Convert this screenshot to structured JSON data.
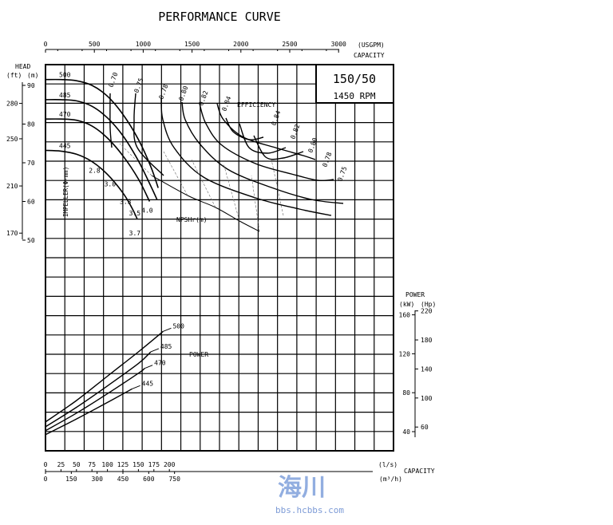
{
  "chart_data": {
    "type": "line",
    "title": "PERFORMANCE CURVE",
    "model": "150/50",
    "speed": "1450 RPM",
    "top_axis": {
      "unit_label": "(USGPM)",
      "label": "CAPACITY",
      "ticks": [
        "0",
        "500",
        "1000",
        "1500",
        "2000",
        "2500",
        "3000"
      ],
      "range": [
        0,
        3000
      ]
    },
    "bottom_axis_ls": {
      "unit_label": "(l/s)",
      "ticks": [
        "0",
        "25",
        "50",
        "75",
        "100",
        "125",
        "150",
        "175",
        "200"
      ],
      "range": [
        0,
        215
      ]
    },
    "bottom_axis_m3h": {
      "unit_label": "(m³/h)",
      "ticks": [
        "0",
        "150",
        "300",
        "450",
        "600",
        "750"
      ],
      "label": "CAPACITY"
    },
    "head_axis": {
      "label": "HEAD",
      "ft_label": "(ft)",
      "m_label": "(m)",
      "m_ticks": [
        "90",
        "80",
        "70",
        "60",
        "50"
      ],
      "ft_ticks": [
        "280",
        "250",
        "210",
        "170"
      ]
    },
    "power_axis": {
      "label": "POWER",
      "kw_label": "(kW)",
      "hp_label": "(Hp)",
      "kw_ticks": [
        "160",
        "120",
        "80",
        "40"
      ],
      "hp_ticks": [
        "220",
        "180",
        "140",
        "100",
        "60"
      ]
    },
    "labels": {
      "efficiency": "EFFICIENCY",
      "impeller": "IMPELLER(Φ-mm)",
      "npsh": "NPSHr(m)",
      "power": "POWER"
    },
    "head_curves": [
      {
        "name": "500",
        "points": [
          [
            0,
            91.5
          ],
          [
            25,
            91.5
          ],
          [
            50,
            91.2
          ],
          [
            75,
            90
          ],
          [
            100,
            87.2
          ],
          [
            125,
            82.5
          ],
          [
            150,
            76
          ],
          [
            170,
            69
          ],
          [
            182,
            63.5
          ]
        ]
      },
      {
        "name": "485",
        "points": [
          [
            0,
            86.3
          ],
          [
            25,
            86.3
          ],
          [
            50,
            86
          ],
          [
            75,
            84.6
          ],
          [
            100,
            81.6
          ],
          [
            125,
            77
          ],
          [
            150,
            70.5
          ],
          [
            170,
            64
          ],
          [
            180,
            60.5
          ]
        ]
      },
      {
        "name": "470",
        "points": [
          [
            0,
            81.3
          ],
          [
            25,
            81.3
          ],
          [
            50,
            81
          ],
          [
            75,
            79.5
          ],
          [
            100,
            76.4
          ],
          [
            125,
            71.8
          ],
          [
            150,
            65.8
          ],
          [
            168,
            60
          ]
        ]
      },
      {
        "name": "445",
        "points": [
          [
            0,
            73.2
          ],
          [
            25,
            73
          ],
          [
            50,
            72.2
          ],
          [
            75,
            70.3
          ],
          [
            100,
            67
          ],
          [
            125,
            62.2
          ],
          [
            140,
            58.2
          ],
          [
            148,
            55.5
          ]
        ]
      }
    ],
    "efficiency_labels": [
      "0.70",
      "0.75",
      "0.78",
      "0.80",
      "0.82",
      "0.84",
      "0.84",
      "0.82",
      "0.80",
      "0.78",
      "0.75"
    ],
    "npsh_labels": [
      "2.8",
      "3.0",
      "3.3",
      "3.5",
      "3.7",
      "4.0"
    ],
    "npsh_points": [
      {
        "label": "2.8",
        "q": 75,
        "h": 68.7
      },
      {
        "label": "3.0",
        "q": 100,
        "h": 65.2
      },
      {
        "label": "3.3",
        "q": 125,
        "h": 60.6
      },
      {
        "label": "3.5",
        "q": 140,
        "h": 57.6
      },
      {
        "label": "3.7",
        "q": 140,
        "h": 52.5
      },
      {
        "label": "4.0",
        "q": 160,
        "h": 58.4
      }
    ],
    "power_curves": [
      {
        "name": "500",
        "points": [
          [
            0,
            50
          ],
          [
            50,
            72
          ],
          [
            100,
            97
          ],
          [
            150,
            122
          ],
          [
            190,
            143
          ]
        ]
      },
      {
        "name": "485",
        "points": [
          [
            0,
            45
          ],
          [
            50,
            65
          ],
          [
            100,
            87
          ],
          [
            150,
            110
          ],
          [
            170,
            122
          ]
        ]
      },
      {
        "name": "470",
        "points": [
          [
            0,
            41
          ],
          [
            50,
            59
          ],
          [
            100,
            79
          ],
          [
            150,
            100
          ],
          [
            160,
            105
          ]
        ]
      },
      {
        "name": "445",
        "points": [
          [
            0,
            37
          ],
          [
            50,
            53
          ],
          [
            100,
            70
          ],
          [
            140,
            84
          ]
        ]
      }
    ]
  },
  "watermark": {
    "logo_text": "海川",
    "site": "bbs.hcbbs.com"
  }
}
